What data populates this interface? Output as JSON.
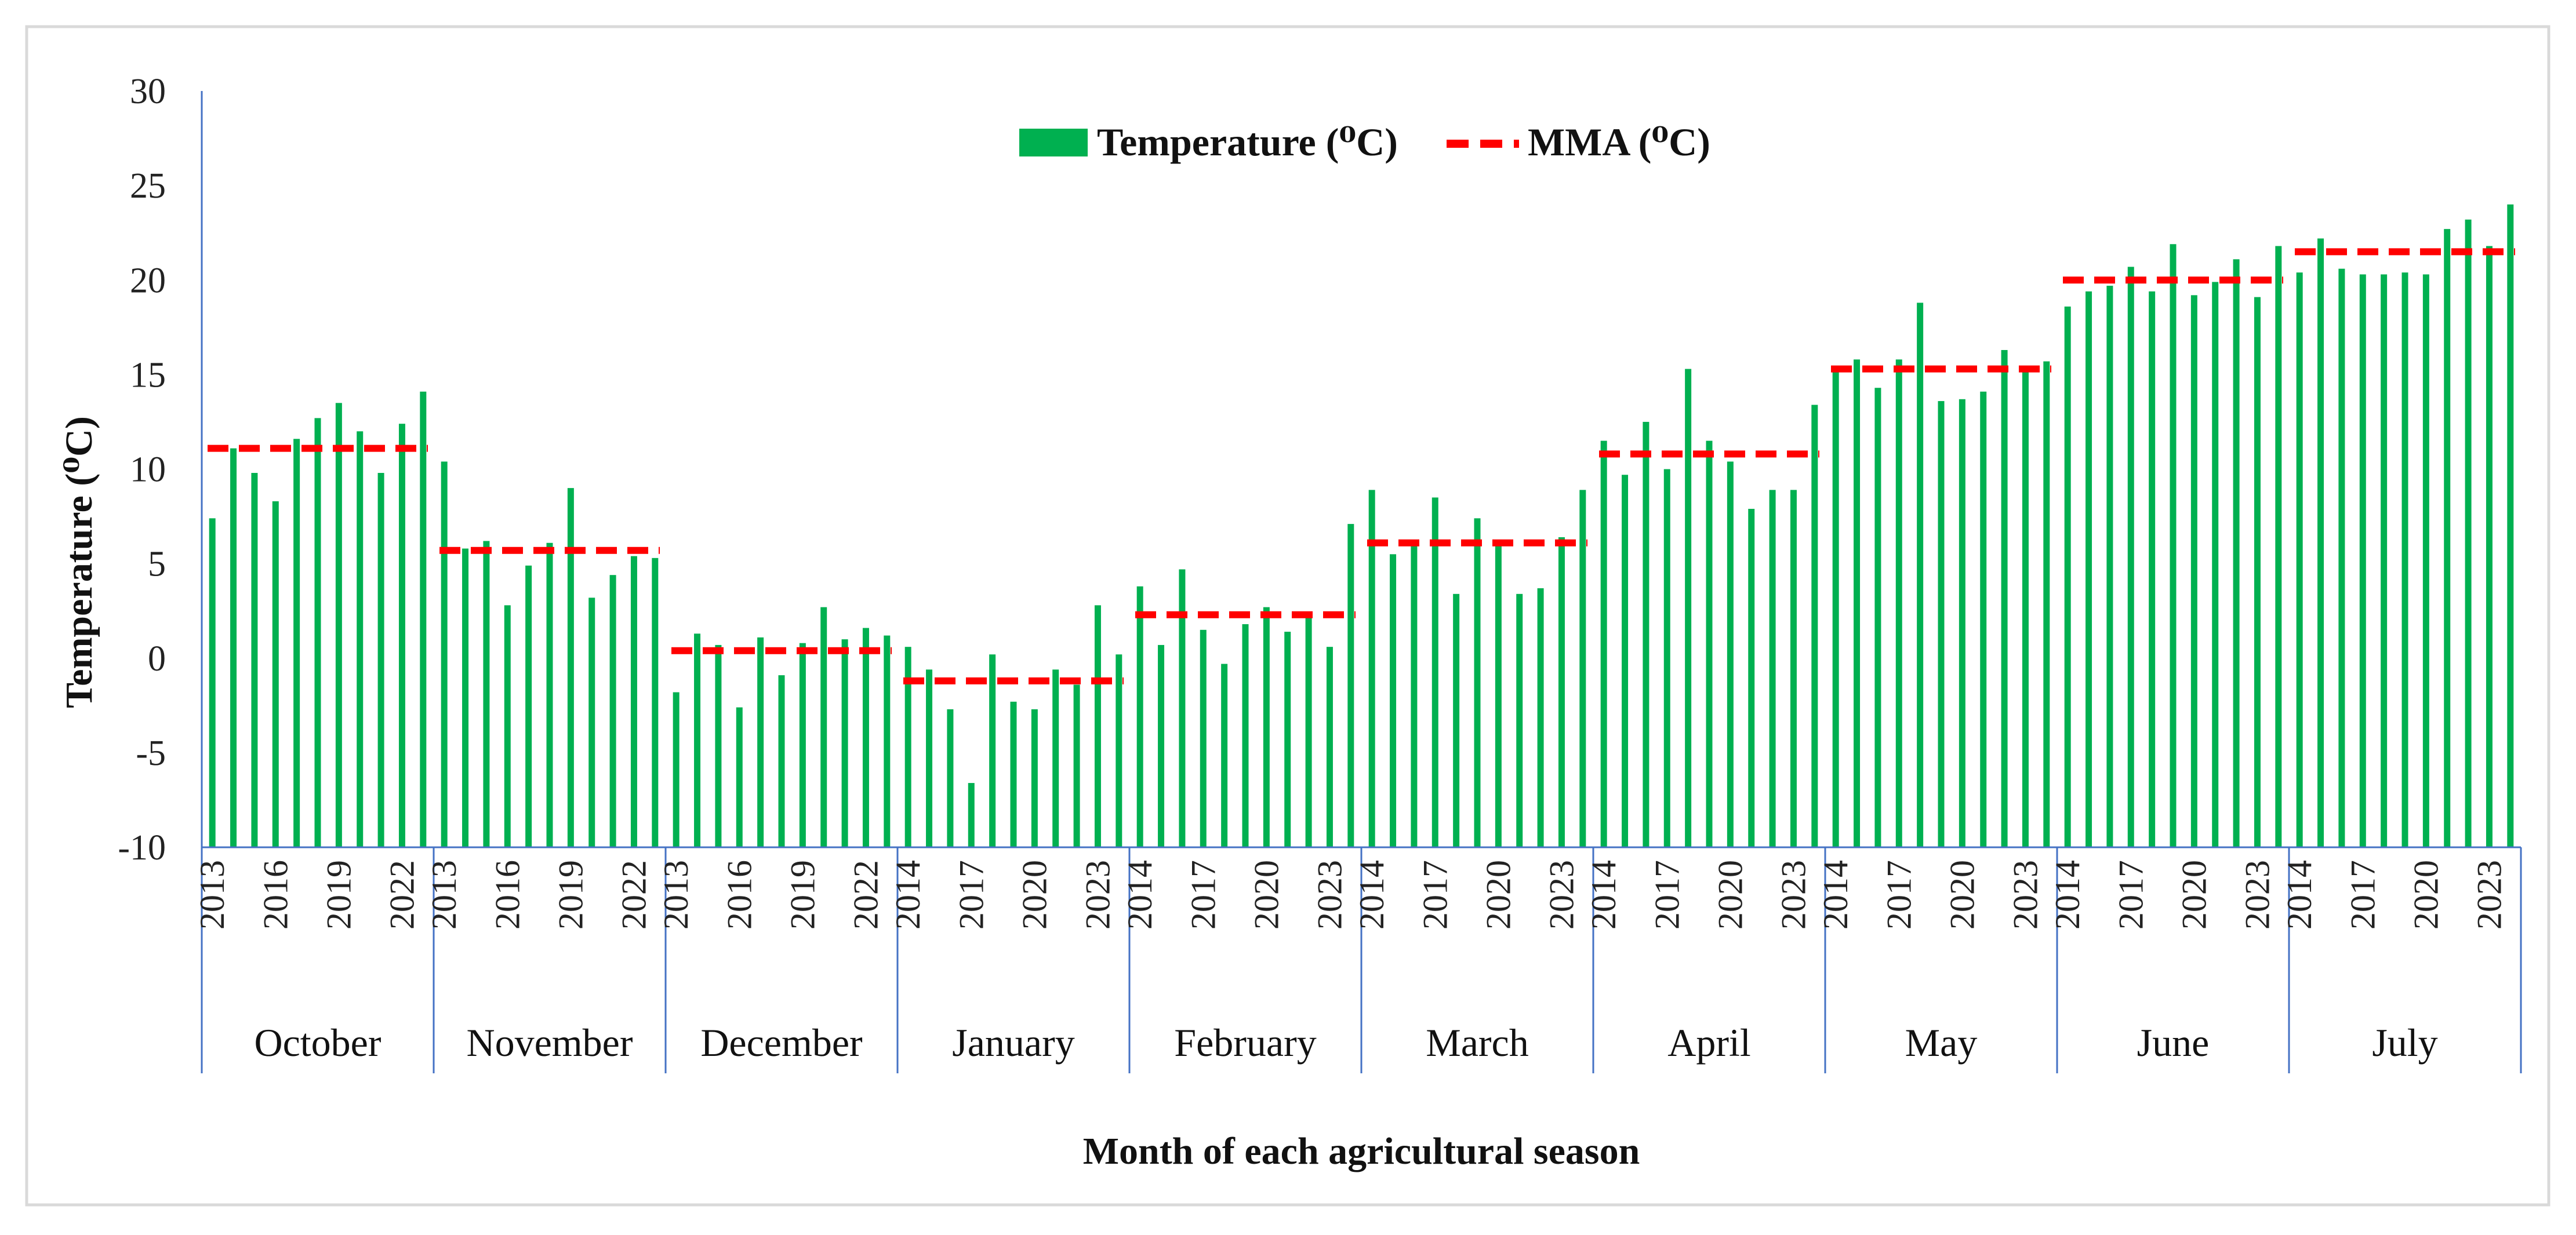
{
  "colors": {
    "bar": "#00B050",
    "mma": "#FF0000",
    "axis": "#4472C4",
    "border": "#D9D9D9"
  },
  "chart_data": {
    "type": "bar",
    "title": "",
    "xlabel": "Month of each agricultural season",
    "ylabel": "Temperature (⁰C)",
    "ylim": [
      -10,
      30
    ],
    "yticks": [
      -10,
      -5,
      0,
      5,
      10,
      15,
      20,
      25,
      30
    ],
    "grid": false,
    "legend_position": "top-center",
    "legend": {
      "bar_label": "Temperature (⁰C)",
      "line_label": "MMA (⁰C)"
    },
    "groups": [
      {
        "month": "October",
        "years": [
          2013,
          2014,
          2015,
          2016,
          2017,
          2018,
          2019,
          2020,
          2021,
          2022,
          2023
        ],
        "values": [
          7.4,
          11.1,
          9.8,
          8.3,
          11.6,
          12.7,
          13.5,
          12.0,
          9.8,
          12.4,
          14.1
        ],
        "mma": 11.1,
        "year_ticks": [
          "2013",
          "2016",
          "2019",
          "2022"
        ]
      },
      {
        "month": "November",
        "years": [
          2013,
          2014,
          2015,
          2016,
          2017,
          2018,
          2019,
          2020,
          2021,
          2022,
          2023
        ],
        "values": [
          10.4,
          5.8,
          6.2,
          2.8,
          4.9,
          6.1,
          9.0,
          3.2,
          4.4,
          5.4,
          5.3
        ],
        "mma": 5.7,
        "year_ticks": [
          "2013",
          "2016",
          "2019",
          "2022"
        ]
      },
      {
        "month": "December",
        "years": [
          2013,
          2014,
          2015,
          2016,
          2017,
          2018,
          2019,
          2020,
          2021,
          2022,
          2023
        ],
        "values": [
          -1.8,
          1.3,
          0.7,
          -2.6,
          1.1,
          -0.9,
          0.8,
          2.7,
          1.0,
          1.6,
          1.2
        ],
        "mma": 0.4,
        "year_ticks": [
          "2013",
          "2016",
          "2019",
          "2022"
        ]
      },
      {
        "month": "January",
        "years": [
          2014,
          2015,
          2016,
          2017,
          2018,
          2019,
          2020,
          2021,
          2022,
          2023,
          2024
        ],
        "values": [
          0.6,
          -0.6,
          -2.7,
          -6.6,
          0.2,
          -2.3,
          -2.7,
          -0.6,
          -1.4,
          2.8,
          0.2
        ],
        "mma": -1.2,
        "year_ticks": [
          "2014",
          "2017",
          "2020",
          "2023"
        ]
      },
      {
        "month": "February",
        "years": [
          2014,
          2015,
          2016,
          2017,
          2018,
          2019,
          2020,
          2021,
          2022,
          2023,
          2024
        ],
        "values": [
          3.8,
          0.7,
          4.7,
          1.5,
          -0.3,
          1.8,
          2.7,
          1.4,
          2.2,
          0.6,
          7.1
        ],
        "mma": 2.3,
        "year_ticks": [
          "2014",
          "2017",
          "2020",
          "2023"
        ]
      },
      {
        "month": "March",
        "years": [
          2014,
          2015,
          2016,
          2017,
          2018,
          2019,
          2020,
          2021,
          2022,
          2023,
          2024
        ],
        "values": [
          8.9,
          5.5,
          6.0,
          8.5,
          3.4,
          7.4,
          6.1,
          3.4,
          3.7,
          6.4,
          8.9
        ],
        "mma": 6.1,
        "year_ticks": [
          "2014",
          "2017",
          "2020",
          "2023"
        ]
      },
      {
        "month": "April",
        "years": [
          2014,
          2015,
          2016,
          2017,
          2018,
          2019,
          2020,
          2021,
          2022,
          2023,
          2024
        ],
        "values": [
          11.5,
          9.7,
          12.5,
          10.0,
          15.3,
          11.5,
          10.4,
          7.9,
          8.9,
          8.9,
          13.4
        ],
        "mma": 10.8,
        "year_ticks": [
          "2014",
          "2017",
          "2020",
          "2023"
        ]
      },
      {
        "month": "May",
        "years": [
          2014,
          2015,
          2016,
          2017,
          2018,
          2019,
          2020,
          2021,
          2022,
          2023,
          2024
        ],
        "values": [
          15.2,
          15.8,
          14.3,
          15.8,
          18.8,
          13.6,
          13.7,
          14.1,
          16.3,
          15.2,
          15.7
        ],
        "mma": 15.3,
        "year_ticks": [
          "2014",
          "2017",
          "2020",
          "2023"
        ]
      },
      {
        "month": "June",
        "years": [
          2014,
          2015,
          2016,
          2017,
          2018,
          2019,
          2020,
          2021,
          2022,
          2023,
          2024
        ],
        "values": [
          18.6,
          19.4,
          19.7,
          20.7,
          19.4,
          21.9,
          19.2,
          19.9,
          21.1,
          19.1,
          21.8
        ],
        "mma": 20.0,
        "year_ticks": [
          "2014",
          "2017",
          "2020",
          "2023"
        ]
      },
      {
        "month": "July",
        "years": [
          2014,
          2015,
          2016,
          2017,
          2018,
          2019,
          2020,
          2021,
          2022,
          2023,
          2024
        ],
        "values": [
          20.4,
          22.2,
          20.6,
          20.3,
          20.3,
          20.4,
          20.3,
          22.7,
          23.2,
          21.8,
          24.0
        ],
        "mma": 21.5,
        "year_ticks": [
          "2014",
          "2017",
          "2020",
          "2023"
        ]
      }
    ]
  }
}
